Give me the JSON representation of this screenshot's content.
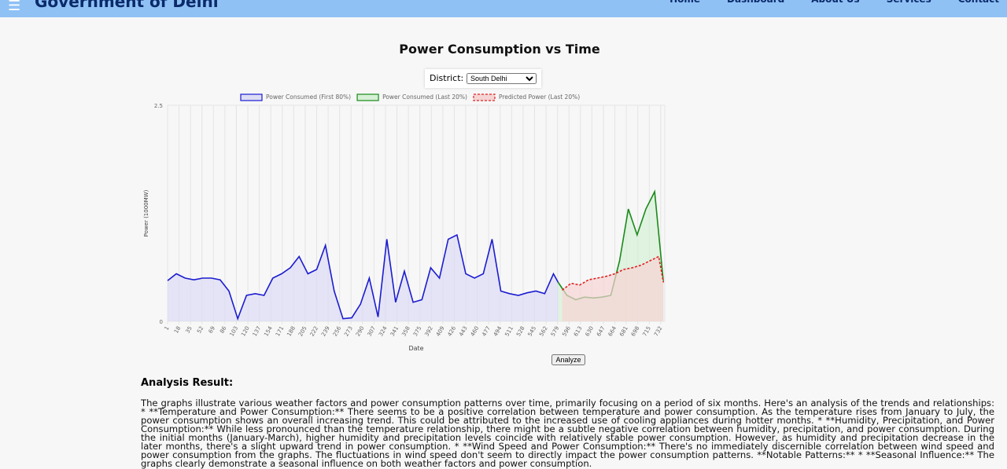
{
  "header": {
    "menu_icon": "☰",
    "title": "Government of Delhi",
    "nav": [
      "Home",
      "Dashboard",
      "About Us",
      "Services",
      "Contact"
    ]
  },
  "controls": {
    "district_label": "District:",
    "district_value": "South Delhi",
    "analyze_button": "Analyze"
  },
  "chart_data": {
    "type": "line",
    "title": "Power Consumption vs Time",
    "xlabel": "Date",
    "ylabel": "Power (1000MW)",
    "xlim": [
      1,
      738
    ],
    "ylim": [
      0,
      2.5
    ],
    "yticks": [
      0,
      2.5
    ],
    "xticks": [
      1,
      18,
      35,
      52,
      69,
      86,
      103,
      120,
      137,
      154,
      171,
      188,
      205,
      222,
      239,
      256,
      273,
      290,
      307,
      324,
      341,
      358,
      375,
      392,
      409,
      426,
      443,
      460,
      477,
      494,
      511,
      528,
      545,
      562,
      579,
      596,
      613,
      630,
      647,
      664,
      681,
      698,
      715,
      732
    ],
    "grid": true,
    "area": true,
    "series": [
      {
        "name": "Power Consumed (First 80%)",
        "color": "#1c1cd0",
        "fill": "#dcdcf5",
        "dashed": false,
        "x": [
          1,
          14,
          27,
          40,
          53,
          66,
          79,
          92,
          105,
          118,
          131,
          144,
          157,
          170,
          183,
          196,
          209,
          222,
          235,
          248,
          261,
          274,
          287,
          300,
          313,
          326,
          339,
          352,
          365,
          378,
          391,
          404,
          417,
          430,
          443,
          456,
          469,
          482,
          495,
          508,
          521,
          534,
          547,
          560,
          573,
          580
        ],
        "values": [
          0.47,
          0.55,
          0.5,
          0.48,
          0.5,
          0.5,
          0.48,
          0.35,
          0.03,
          0.3,
          0.32,
          0.3,
          0.5,
          0.55,
          0.62,
          0.75,
          0.55,
          0.6,
          0.88,
          0.35,
          0.03,
          0.04,
          0.2,
          0.5,
          0.05,
          0.95,
          0.22,
          0.58,
          0.22,
          0.25,
          0.62,
          0.5,
          0.95,
          1.0,
          0.55,
          0.5,
          0.55,
          0.95,
          0.35,
          0.32,
          0.3,
          0.33,
          0.35,
          0.32,
          0.55,
          0.45
        ]
      },
      {
        "name": "Power Consumed (Last 20%)",
        "color": "#1a8a1a",
        "fill": "#d6f0d6",
        "dashed": false,
        "x": [
          580,
          593,
          606,
          619,
          632,
          645,
          658,
          671,
          684,
          697,
          710,
          723,
          736
        ],
        "values": [
          0.45,
          0.3,
          0.25,
          0.28,
          0.27,
          0.28,
          0.3,
          0.7,
          1.3,
          1.0,
          1.3,
          1.5,
          0.45
        ]
      },
      {
        "name": "Predicted Power (Last 20%)",
        "color": "#e02020",
        "fill": "#f6d4d4",
        "dashed": true,
        "x": [
          586,
          599,
          612,
          625,
          638,
          651,
          664,
          677,
          690,
          703,
          716,
          729,
          736
        ],
        "values": [
          0.36,
          0.44,
          0.42,
          0.48,
          0.5,
          0.52,
          0.55,
          0.6,
          0.62,
          0.65,
          0.7,
          0.75,
          0.45
        ]
      }
    ]
  },
  "analysis": {
    "title": "Analysis Result:",
    "text": "The graphs illustrate various weather factors and power consumption patterns over time, primarily focusing on a period of six months. Here's an analysis of the trends and relationships: * **Temperature and Power Consumption:** There seems to be a positive correlation between temperature and power consumption. As the temperature rises from January to July, the power consumption shows an overall increasing trend. This could be attributed to the increased use of cooling appliances during hotter months. * **Humidity, Precipitation, and Power Consumption:** While less pronounced than the temperature relationship, there might be a subtle negative correlation between humidity, precipitation, and power consumption. During the initial months (January-March), higher humidity and precipitation levels coincide with relatively stable power consumption. However, as humidity and precipitation decrease in the later months, there's a slight upward trend in power consumption. * **Wind Speed and Power Consumption:** There's no immediately discernible correlation between wind speed and power consumption from the graphs. The fluctuations in wind speed don't seem to directly impact the power consumption patterns. **Notable Patterns:** * **Seasonal Influence:** The graphs clearly demonstrate a seasonal influence on both weather factors and power consumption."
  }
}
